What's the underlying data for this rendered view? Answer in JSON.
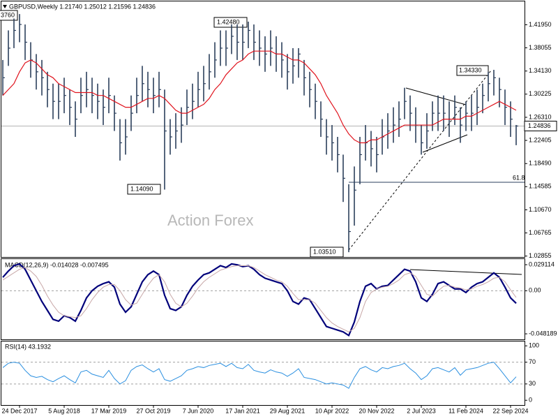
{
  "chart_data": [
    {
      "type": "ohlc",
      "title": "GBPUSD,Weekly  1.21740 1.25012 1.21596 1.24836",
      "color": "#2b3f5c",
      "categories": [
        null,
        null,
        null,
        "24 Dec 2017",
        null,
        null,
        null,
        null,
        null,
        null,
        null,
        "5 Aug 2018",
        null,
        null,
        null,
        null,
        null,
        null,
        null,
        "17 Mar 2019",
        null,
        null,
        null,
        null,
        null,
        null,
        null,
        "27 Oct 2019",
        null,
        null,
        null,
        null,
        null,
        null,
        null,
        "7 Jun 2020",
        null,
        null,
        null,
        null,
        null,
        null,
        null,
        "17 Jan 2021",
        null,
        null,
        null,
        null,
        null,
        null,
        null,
        "29 Aug 2021",
        null,
        null,
        null,
        null,
        null,
        null,
        null,
        "10 Apr 2022",
        null,
        null,
        null,
        null,
        null,
        null,
        null,
        "20 Nov 2022",
        null,
        null,
        null,
        null,
        null,
        null,
        null,
        "2 Jul 2023",
        null,
        null,
        null,
        null,
        null,
        null,
        null,
        "11 Feb 2024",
        null,
        null,
        null,
        null,
        null,
        null,
        null,
        "22 Sep 2024",
        null
      ],
      "high": [
        1.36,
        1.41,
        1.43,
        1.4376,
        1.42,
        1.39,
        1.37,
        1.36,
        1.34,
        1.32,
        1.32,
        1.33,
        1.31,
        1.29,
        1.33,
        1.34,
        1.33,
        1.32,
        1.31,
        1.33,
        1.3,
        1.26,
        1.26,
        1.3,
        1.33,
        1.35,
        1.34,
        1.33,
        1.34,
        1.31,
        1.26,
        1.27,
        1.28,
        1.31,
        1.32,
        1.34,
        1.35,
        1.37,
        1.39,
        1.41,
        1.41,
        1.42,
        1.42,
        1.42,
        1.4248,
        1.42,
        1.41,
        1.4,
        1.41,
        1.4,
        1.39,
        1.37,
        1.38,
        1.38,
        1.36,
        1.34,
        1.32,
        1.29,
        1.26,
        1.25,
        1.23,
        1.2,
        1.15,
        1.18,
        1.23,
        1.25,
        1.24,
        1.23,
        1.26,
        1.27,
        1.28,
        1.29,
        1.313,
        1.3,
        1.28,
        1.25,
        1.27,
        1.29,
        1.3,
        1.3,
        1.29,
        1.3,
        1.28,
        1.29,
        1.3,
        1.31,
        1.32,
        1.34,
        1.3433,
        1.33,
        1.31,
        1.29,
        1.25012
      ],
      "low": [
        1.3,
        1.35,
        1.38,
        1.39,
        1.36,
        1.33,
        1.31,
        1.3,
        1.28,
        1.26,
        1.26,
        1.27,
        1.25,
        1.23,
        1.27,
        1.28,
        1.27,
        1.26,
        1.25,
        1.27,
        1.24,
        1.19,
        1.2,
        1.24,
        1.27,
        1.29,
        1.28,
        1.27,
        1.28,
        1.1409,
        1.2,
        1.21,
        1.22,
        1.25,
        1.26,
        1.28,
        1.29,
        1.31,
        1.33,
        1.35,
        1.35,
        1.37,
        1.36,
        1.36,
        1.38,
        1.36,
        1.35,
        1.34,
        1.35,
        1.34,
        1.33,
        1.31,
        1.32,
        1.33,
        1.3,
        1.28,
        1.26,
        1.23,
        1.2,
        1.19,
        1.17,
        1.12,
        1.0351,
        1.08,
        1.15,
        1.19,
        1.18,
        1.17,
        1.2,
        1.21,
        1.22,
        1.23,
        1.26,
        1.24,
        1.22,
        1.2,
        1.21,
        1.24,
        1.24,
        1.24,
        1.23,
        1.25,
        1.22,
        1.24,
        1.24,
        1.25,
        1.27,
        1.29,
        1.3,
        1.28,
        1.25,
        1.23,
        1.21596
      ],
      "close": [
        1.33,
        1.38,
        1.41,
        1.42,
        1.39,
        1.36,
        1.34,
        1.33,
        1.31,
        1.29,
        1.29,
        1.3,
        1.28,
        1.26,
        1.3,
        1.31,
        1.3,
        1.29,
        1.28,
        1.3,
        1.27,
        1.22,
        1.23,
        1.27,
        1.3,
        1.32,
        1.31,
        1.3,
        1.31,
        1.24,
        1.23,
        1.24,
        1.25,
        1.28,
        1.29,
        1.31,
        1.32,
        1.34,
        1.36,
        1.38,
        1.38,
        1.4,
        1.39,
        1.39,
        1.41,
        1.39,
        1.38,
        1.37,
        1.38,
        1.37,
        1.36,
        1.34,
        1.35,
        1.37,
        1.33,
        1.31,
        1.29,
        1.26,
        1.23,
        1.22,
        1.2,
        1.16,
        1.07,
        1.14,
        1.2,
        1.22,
        1.21,
        1.2,
        1.23,
        1.24,
        1.25,
        1.26,
        1.29,
        1.27,
        1.25,
        1.22,
        1.24,
        1.27,
        1.27,
        1.27,
        1.26,
        1.28,
        1.25,
        1.27,
        1.27,
        1.28,
        1.3,
        1.32,
        1.33,
        1.31,
        1.28,
        1.26,
        1.24836
      ],
      "overlays": [
        {
          "color": "#e0141e",
          "values": [
            1.3,
            1.31,
            1.32,
            1.34,
            1.355,
            1.36,
            1.355,
            1.345,
            1.335,
            1.33,
            1.32,
            1.315,
            1.31,
            1.305,
            1.305,
            1.305,
            1.305,
            1.3,
            1.3,
            1.295,
            1.29,
            1.285,
            1.28,
            1.28,
            1.285,
            1.29,
            1.295,
            1.295,
            1.3,
            1.295,
            1.285,
            1.275,
            1.27,
            1.27,
            1.275,
            1.28,
            1.285,
            1.295,
            1.31,
            1.32,
            1.335,
            1.345,
            1.355,
            1.36,
            1.37,
            1.375,
            1.375,
            1.375,
            1.375,
            1.37,
            1.37,
            1.365,
            1.36,
            1.36,
            1.355,
            1.345,
            1.335,
            1.32,
            1.3,
            1.285,
            1.27,
            1.25,
            1.235,
            1.225,
            1.22,
            1.22,
            1.225,
            1.225,
            1.23,
            1.235,
            1.24,
            1.245,
            1.25,
            1.25,
            1.25,
            1.25,
            1.25,
            1.25,
            1.255,
            1.26,
            1.26,
            1.26,
            1.26,
            1.265,
            1.265,
            1.27,
            1.275,
            1.28,
            1.285,
            1.29,
            1.285,
            1.28,
            1.275
          ]
        }
      ],
      "last_line_color": "#b4b4b4",
      "ylim": [
        1.027,
        1.459
      ],
      "yticks": [
        {
          "value": 1.4195,
          "label": "1.41950"
        },
        1.38055,
        {
          "value": 1.3413,
          "label": "1.34130"
        },
        1.30225,
        {
          "value": 1.2631,
          "label": "1.26310"
        },
        1.22405,
        {
          "value": 1.1849,
          "label": "1.18490"
        },
        1.14585,
        {
          "value": 1.1067,
          "label": "1.10670"
        },
        1.06765,
        1.02855
      ],
      "annotations": [
        "3760",
        "1.42480",
        "1.14090",
        "1.03510",
        "1.34330",
        "61.8"
      ],
      "watermark": "Action Forex"
    },
    {
      "type": "line",
      "title": "MACD(12,26,9) -0.014028 -0.007495",
      "series": [
        {
          "color": "#00007a",
          "values": [
            0.015,
            0.022,
            0.028,
            0.03,
            0.024,
            0.012,
            0.0,
            -0.012,
            -0.022,
            -0.032,
            -0.034,
            -0.028,
            -0.03,
            -0.034,
            -0.022,
            -0.008,
            0.0,
            0.005,
            0.008,
            0.01,
            0.004,
            -0.015,
            -0.024,
            -0.018,
            -0.004,
            0.01,
            0.018,
            0.022,
            0.018,
            -0.005,
            -0.02,
            -0.022,
            -0.018,
            -0.005,
            0.005,
            0.012,
            0.018,
            0.02,
            0.024,
            0.028,
            0.026,
            0.03,
            0.029,
            0.027,
            0.028,
            0.024,
            0.018,
            0.014,
            0.012,
            0.01,
            0.008,
            0.0,
            -0.012,
            -0.015,
            -0.008,
            -0.01,
            -0.02,
            -0.03,
            -0.04,
            -0.042,
            -0.044,
            -0.046,
            -0.05,
            -0.035,
            -0.012,
            0.005,
            0.008,
            0.002,
            0.005,
            0.006,
            0.012,
            0.018,
            0.024,
            0.022,
            0.01,
            -0.008,
            -0.012,
            -0.004,
            0.008,
            0.01,
            0.006,
            0.002,
            0.002,
            -0.002,
            0.004,
            0.008,
            0.01,
            0.015,
            0.02,
            0.015,
            0.004,
            -0.008,
            -0.014028
          ]
        },
        {
          "color": "#c8a8a8",
          "values": [
            0.012,
            0.016,
            0.02,
            0.024,
            0.026,
            0.022,
            0.016,
            0.006,
            -0.006,
            -0.016,
            -0.024,
            -0.028,
            -0.029,
            -0.03,
            -0.028,
            -0.02,
            -0.01,
            -0.002,
            0.004,
            0.007,
            0.007,
            0.0,
            -0.01,
            -0.016,
            -0.014,
            -0.004,
            0.006,
            0.014,
            0.018,
            0.01,
            -0.004,
            -0.014,
            -0.018,
            -0.014,
            -0.006,
            0.003,
            0.01,
            0.015,
            0.019,
            0.023,
            0.025,
            0.027,
            0.028,
            0.028,
            0.028,
            0.026,
            0.022,
            0.018,
            0.015,
            0.012,
            0.01,
            0.005,
            -0.003,
            -0.01,
            -0.01,
            -0.01,
            -0.014,
            -0.022,
            -0.03,
            -0.036,
            -0.04,
            -0.043,
            -0.046,
            -0.042,
            -0.03,
            -0.012,
            -0.002,
            0.002,
            0.004,
            0.005,
            0.008,
            0.012,
            0.018,
            0.02,
            0.016,
            0.006,
            -0.004,
            -0.006,
            0.0,
            0.005,
            0.006,
            0.004,
            0.003,
            0.001,
            0.002,
            0.005,
            0.007,
            0.01,
            0.014,
            0.015,
            0.01,
            0.001,
            -0.007495
          ]
        }
      ],
      "ylim": [
        -0.0544,
        0.0354
      ],
      "yticks": [
        0.029114,
        {
          "value": 0,
          "label": "0.00"
        },
        -0.048189
      ],
      "levels": [
        0
      ]
    },
    {
      "type": "line",
      "title": "RSI(14) 43.1932",
      "series": [
        {
          "color": "#2a8fe0",
          "values": [
            60,
            68,
            70,
            68,
            55,
            45,
            42,
            44,
            38,
            34,
            40,
            45,
            38,
            32,
            52,
            55,
            48,
            45,
            42,
            55,
            40,
            30,
            36,
            55,
            62,
            65,
            58,
            52,
            58,
            38,
            35,
            40,
            45,
            55,
            58,
            62,
            60,
            64,
            66,
            68,
            62,
            68,
            60,
            58,
            66,
            55,
            52,
            50,
            56,
            52,
            50,
            44,
            50,
            58,
            42,
            40,
            38,
            34,
            30,
            32,
            30,
            28,
            22,
            42,
            58,
            62,
            56,
            52,
            60,
            58,
            62,
            64,
            68,
            58,
            50,
            38,
            45,
            58,
            60,
            56,
            52,
            60,
            46,
            56,
            58,
            60,
            64,
            68,
            70,
            58,
            45,
            32,
            43.1932
          ]
        }
      ],
      "ylim": [
        -10,
        108
      ],
      "yticks": [
        100,
        70,
        30,
        0
      ],
      "levels": [
        70,
        30
      ]
    }
  ]
}
